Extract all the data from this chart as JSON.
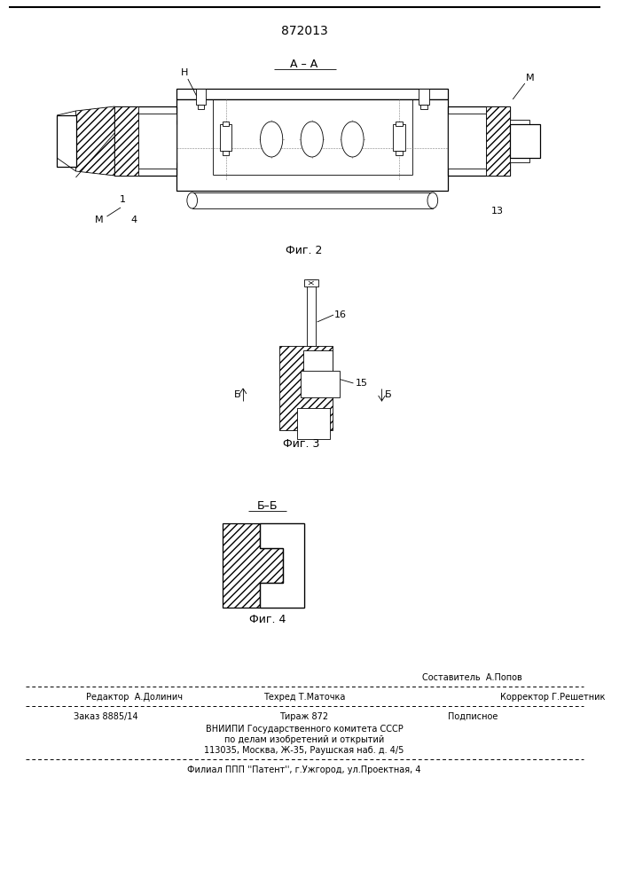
{
  "patent_number": "872013",
  "fig2_label": "Фиг. 2",
  "fig3_label": "Фиг. 3",
  "fig4_label": "Фиг. 4",
  "section_aa": "А – А",
  "section_bb": "Б–Б",
  "label_H": "Н",
  "label_M_left": "М",
  "label_M_right": "М",
  "label_4": "4",
  "label_1": "1",
  "label_13": "13",
  "label_15": "15",
  "label_16": "16",
  "label_B": "Б",
  "footer_editor": "Редактор  А.Долинич",
  "footer_tech": "Техред Т.Маточка",
  "footer_corr": "Корректор Г.Решетник",
  "footer_comp": "Составитель  А.Попов",
  "footer_order": "Заказ 8885/14",
  "footer_tirazh": "Тираж 872",
  "footer_podp": "Подписное",
  "footer_vniip1": "ВНИИПИ Государственного комитета СССР",
  "footer_vniip2": "по делам изобретений и открытий",
  "footer_addr": "113035, Москва, Ж-35, Раушская наб. д. 4/5",
  "footer_filial": "Филиал ППП ''Патент'', г.Ужгород, ул.Проектная, 4",
  "bg_color": "#ffffff",
  "line_color": "#000000"
}
